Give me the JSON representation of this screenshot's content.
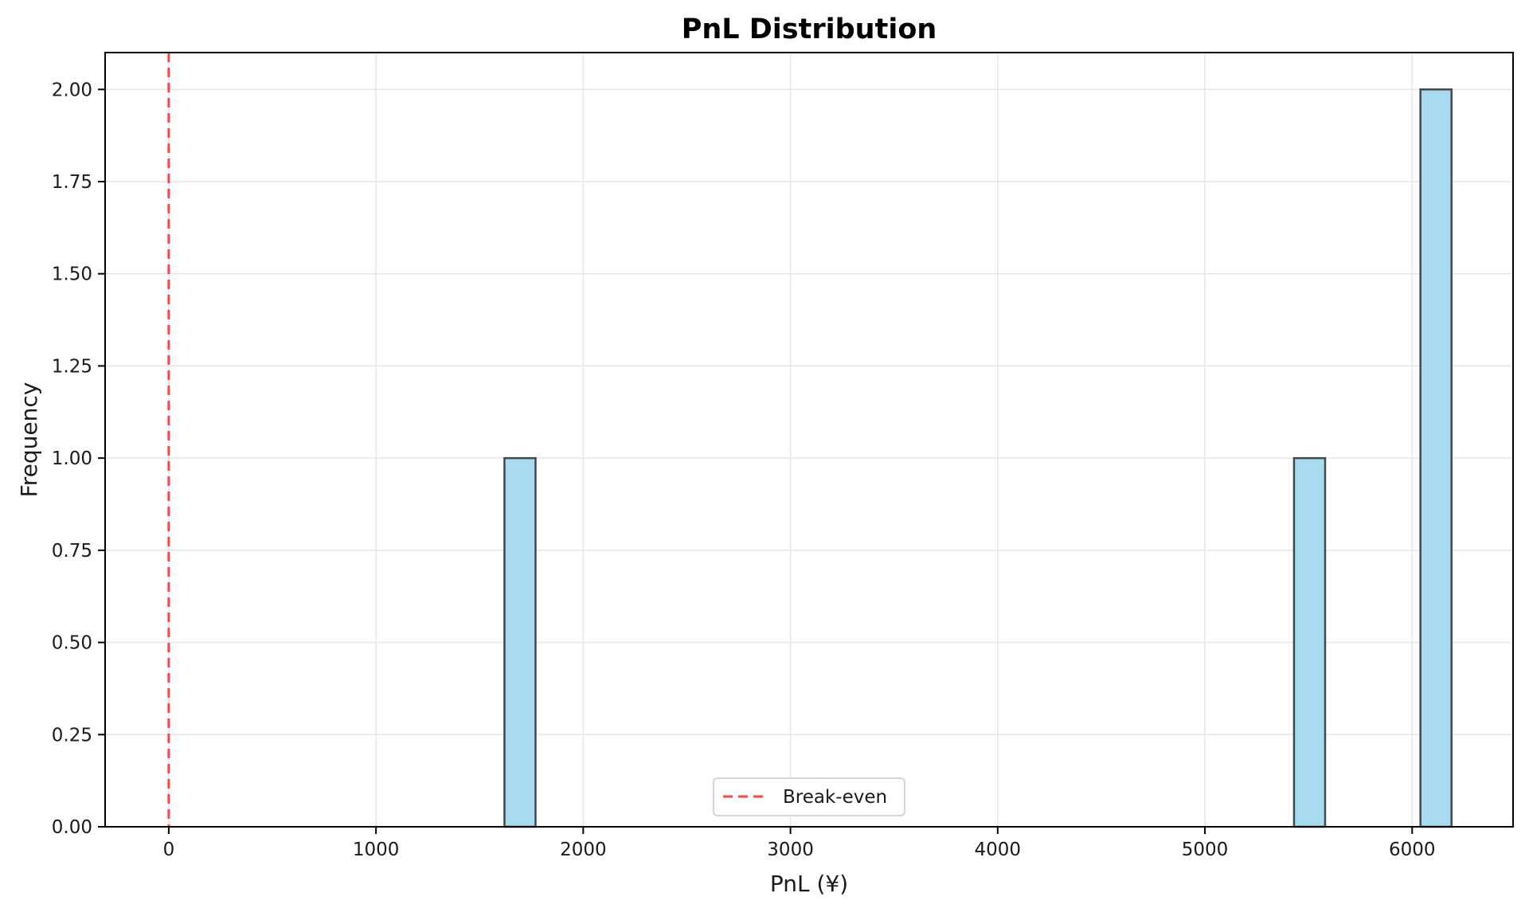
{
  "chart_data": {
    "type": "bar",
    "subtype": "histogram",
    "title": "PnL Distribution",
    "xlabel": "PnL (¥)",
    "ylabel": "Frequency",
    "xlim": [
      -307,
      6487
    ],
    "ylim": [
      0,
      2.1
    ],
    "xticks": [
      0,
      1000,
      2000,
      3000,
      4000,
      5000,
      6000
    ],
    "xtick_labels": [
      "0",
      "1000",
      "2000",
      "3000",
      "4000",
      "5000",
      "6000"
    ],
    "yticks": [
      0,
      0.25,
      0.5,
      0.75,
      1.0,
      1.25,
      1.5,
      1.75,
      2.0
    ],
    "ytick_labels": [
      "0.00",
      "0.25",
      "0.50",
      "0.75",
      "1.00",
      "1.25",
      "1.50",
      "1.75",
      "2.00"
    ],
    "grid": true,
    "bins": [
      {
        "start": 1620,
        "end": 1770,
        "count": 1
      },
      {
        "start": 5430,
        "end": 5580,
        "count": 1
      },
      {
        "start": 6040,
        "end": 6190,
        "count": 2
      }
    ],
    "categories": [
      "1620–1770",
      "5430–5580",
      "6040–6190"
    ],
    "values": [
      1,
      1,
      2
    ],
    "reference_lines": [
      {
        "x": 0,
        "label": "Break-even",
        "style": "dashed",
        "color": "#ff4444"
      }
    ],
    "legend": {
      "position": "lower center",
      "entries": [
        "Break-even"
      ]
    },
    "colors": {
      "bar_fill": "#a8dbef",
      "bar_edge": "#3d4a50",
      "reference_line": "#ff4444",
      "grid": "#e6e6e6"
    }
  }
}
